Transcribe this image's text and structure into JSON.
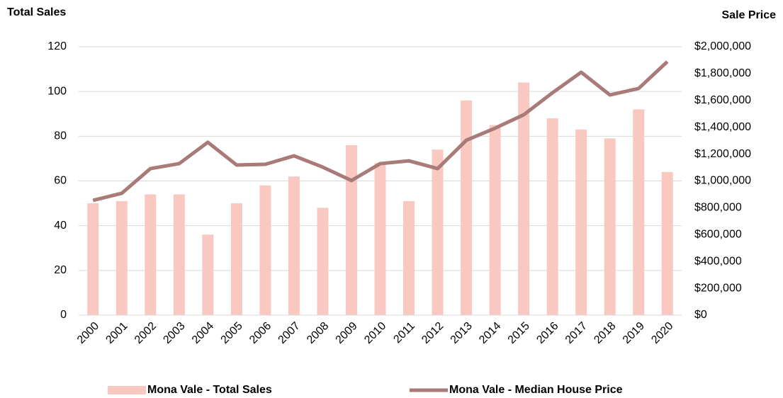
{
  "chart_data": {
    "type": "bar-line",
    "y_label": "Total Sales",
    "y2_label": "Sale Price",
    "categories": [
      "2000",
      "2001",
      "2002",
      "2003",
      "2004",
      "2005",
      "2006",
      "2007",
      "2008",
      "2009",
      "2010",
      "2011",
      "2012",
      "2013",
      "2014",
      "2015",
      "2016",
      "2017",
      "2018",
      "2019",
      "2020"
    ],
    "series": [
      {
        "name": "Mona Vale - Total Sales",
        "type": "bar",
        "color": "#f9c8c0",
        "values": [
          50,
          51,
          54,
          54,
          36,
          50,
          58,
          62,
          48,
          76,
          68,
          51,
          74,
          96,
          85,
          104,
          88,
          83,
          79,
          92,
          64
        ]
      },
      {
        "name": "Mona Vale - Median House Price",
        "type": "line",
        "axis": "y2",
        "color": "#a87a78",
        "values": [
          855000,
          908000,
          1092000,
          1129000,
          1288000,
          1119000,
          1124000,
          1187000,
          1103000,
          1003000,
          1129000,
          1150000,
          1092000,
          1303000,
          1393000,
          1493000,
          1657000,
          1810000,
          1641000,
          1689000,
          1889000
        ]
      }
    ],
    "ylim": [
      0,
      120
    ],
    "yticks": [
      0,
      20,
      40,
      60,
      80,
      100,
      120
    ],
    "y2lim": [
      0,
      2000000
    ],
    "y2ticks": [
      {
        "value": 0,
        "label": "$0"
      },
      {
        "value": 200000,
        "label": "$200,000"
      },
      {
        "value": 400000,
        "label": "$400,000"
      },
      {
        "value": 600000,
        "label": "$600,000"
      },
      {
        "value": 800000,
        "label": "$800,000"
      },
      {
        "value": 1000000,
        "label": "$1,000,000"
      },
      {
        "value": 1200000,
        "label": "$1,200,000"
      },
      {
        "value": 1400000,
        "label": "$1,400,000"
      },
      {
        "value": 1600000,
        "label": "$1,600,000"
      },
      {
        "value": 1800000,
        "label": "$1,800,000"
      },
      {
        "value": 2000000,
        "label": "$2,000,000"
      }
    ],
    "grid": true
  }
}
